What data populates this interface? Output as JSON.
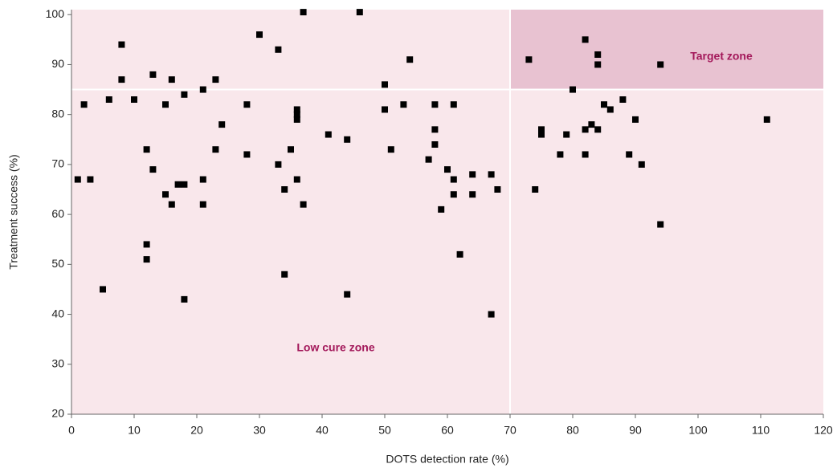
{
  "chart_data": {
    "type": "scatter",
    "x_label": "DOTS detection rate (%)",
    "y_label": "Treatment success (%)",
    "xlim": [
      0,
      120
    ],
    "xticks": [
      0,
      10,
      20,
      30,
      40,
      50,
      60,
      70,
      80,
      90,
      100,
      110,
      120
    ],
    "ylim": [
      20,
      101
    ],
    "yticks": [
      20,
      30,
      40,
      50,
      60,
      70,
      80,
      90,
      100
    ],
    "color": "#000000",
    "target_zone": {
      "label": "Target zone",
      "xmin": 70,
      "ymin": 85
    },
    "low_cure_zone": {
      "label": "Low cure zone"
    },
    "x": [
      1,
      2,
      3,
      5,
      6,
      8,
      8,
      10,
      12,
      12,
      12,
      13,
      13,
      15,
      15,
      16,
      16,
      17,
      18,
      18,
      18,
      21,
      21,
      21,
      23,
      23,
      24,
      28,
      28,
      30,
      33,
      33,
      34,
      34,
      35,
      36,
      36,
      36,
      36,
      37,
      37,
      41,
      44,
      44,
      46,
      50,
      50,
      51,
      53,
      54,
      57,
      58,
      58,
      58,
      59,
      60,
      61,
      61,
      61,
      62,
      64,
      64,
      67,
      67,
      68,
      73,
      74,
      75,
      75,
      78,
      79,
      80,
      82,
      82,
      82,
      83,
      84,
      84,
      84,
      85,
      86,
      88,
      89,
      90,
      91,
      94,
      94,
      111
    ],
    "y": [
      67,
      82,
      67,
      45,
      83,
      94,
      87,
      83,
      73,
      54,
      51,
      88,
      69,
      82,
      64,
      87,
      62,
      66,
      66,
      84,
      43,
      85,
      67,
      62,
      87,
      73,
      78,
      82,
      72,
      96,
      93,
      70,
      65,
      48,
      73,
      81,
      80,
      79,
      67,
      100.5,
      62,
      76,
      75,
      44,
      100.5,
      86,
      81,
      73,
      82,
      91,
      71,
      82,
      77,
      74,
      61,
      69,
      82,
      67,
      64,
      52,
      68,
      64,
      68,
      40,
      65,
      91,
      65,
      77,
      76,
      72,
      76,
      85,
      95,
      77,
      72,
      78,
      92,
      90,
      77,
      82,
      81,
      83,
      72,
      79,
      70,
      90,
      58,
      79
    ]
  }
}
